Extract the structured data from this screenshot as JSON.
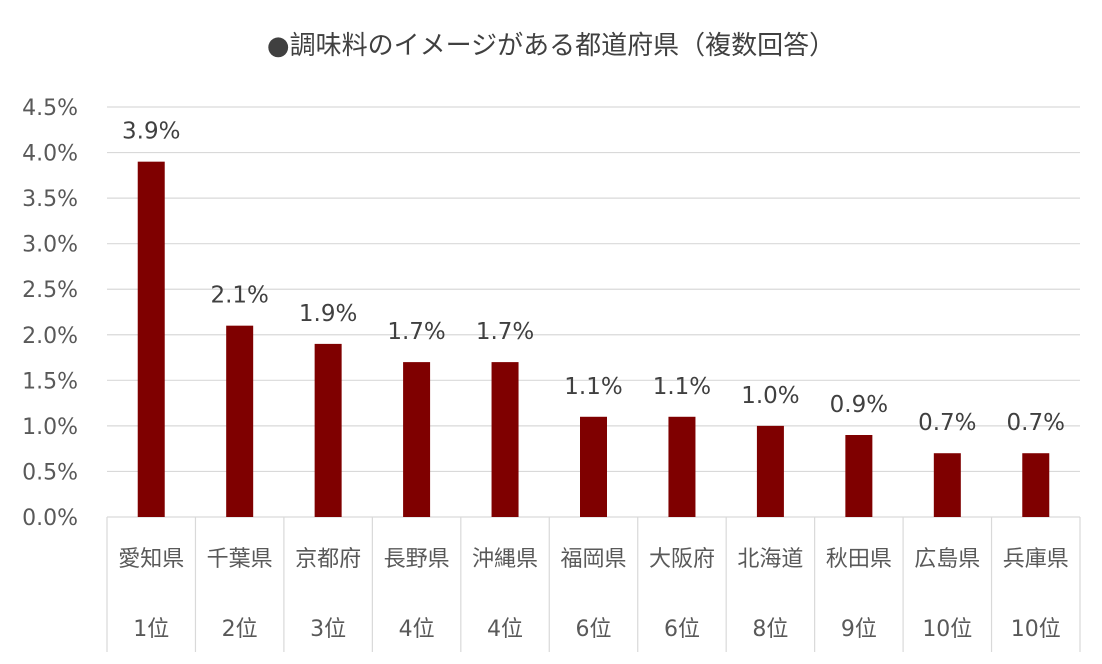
{
  "chart_data": {
    "type": "bar",
    "title": "●調味料のイメージがある都道府県（複数回答）",
    "categories": [
      "愛知県",
      "千葉県",
      "京都府",
      "長野県",
      "沖縄県",
      "福岡県",
      "大阪府",
      "北海道",
      "秋田県",
      "広島県",
      "兵庫県"
    ],
    "ranks": [
      "1位",
      "2位",
      "3位",
      "4位",
      "4位",
      "6位",
      "6位",
      "8位",
      "9位",
      "10位",
      "10位"
    ],
    "values": [
      3.9,
      2.1,
      1.9,
      1.7,
      1.7,
      1.1,
      1.1,
      1.0,
      0.9,
      0.7,
      0.7
    ],
    "value_labels": [
      "3.9%",
      "2.1%",
      "1.9%",
      "1.7%",
      "1.7%",
      "1.1%",
      "1.1%",
      "1.0%",
      "0.9%",
      "0.7%",
      "0.7%"
    ],
    "ylim": [
      0,
      4.5
    ],
    "yticks": [
      0,
      0.5,
      1.0,
      1.5,
      2.0,
      2.5,
      3.0,
      3.5,
      4.0,
      4.5
    ],
    "ytick_labels": [
      "0.0%",
      "0.5%",
      "1.0%",
      "1.5%",
      "2.0%",
      "2.5%",
      "3.0%",
      "3.5%",
      "4.0%",
      "4.5%"
    ],
    "xlabel": "",
    "ylabel": "",
    "grid": true,
    "legend": "none",
    "bar_color": "#7f0000"
  }
}
